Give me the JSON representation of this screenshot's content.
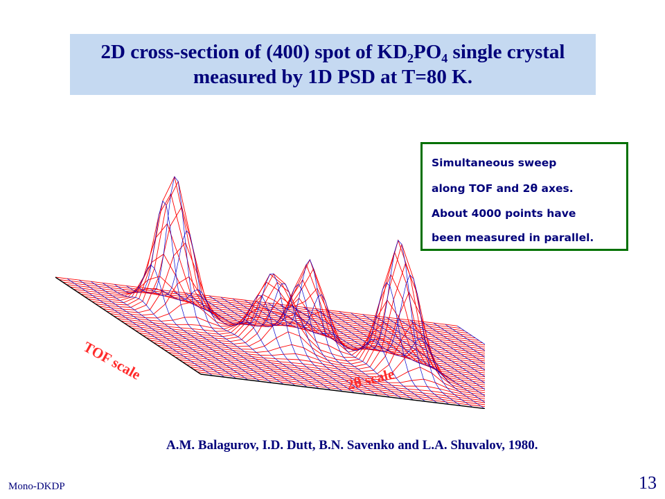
{
  "slide": {
    "title_line1_a": "2D cross-section of (400) spot of KD",
    "title_sub1": "2",
    "title_line1_b": "PO",
    "title_sub2": "4",
    "title_line1_c": " single crystal",
    "title_line2": "measured by 1D PSD at T=80 K.",
    "note_lines": [
      "Simultaneous sweep",
      "along TOF and 2θ axes.",
      "About 4000 points have",
      "been measured in parallel."
    ],
    "axis_tof": "TOF scale",
    "axis_2theta": "2θ scale",
    "credit": "A.M. Balagurov, I.D. Dutt, B.N. Savenko and L.A. Shuvalov, 1980.",
    "footer_left": "Mono-DKDP",
    "page_number": "13"
  },
  "plot": {
    "mesh_color_tof": "#ff0000",
    "mesh_color_2theta": "#0000cc",
    "peak_count": 4
  }
}
